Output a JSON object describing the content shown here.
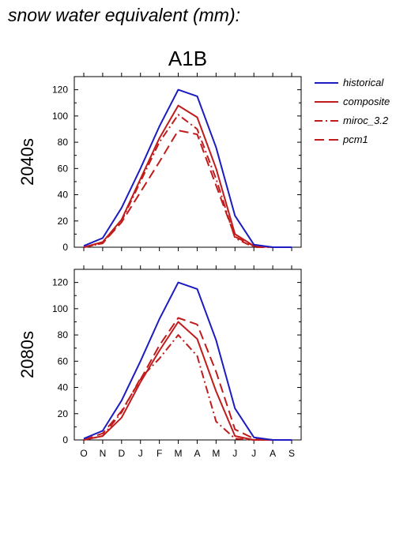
{
  "figure": {
    "title": "snow water equivalent (mm):",
    "scenario": "A1B"
  },
  "legend": [
    {
      "name": "historical",
      "color": "#1c1cc0",
      "dash": "solid"
    },
    {
      "name": "composite",
      "color": "#c01c1c",
      "dash": "solid"
    },
    {
      "name": "miroc_3.2",
      "color": "#c01c1c",
      "dash": "dashdot"
    },
    {
      "name": "pcm1",
      "color": "#c01c1c",
      "dash": "dash"
    }
  ],
  "chart_data": [
    {
      "type": "line",
      "title": "A1B",
      "ylabel": "2040s",
      "xlabel": "",
      "categories": [
        "O",
        "N",
        "D",
        "J",
        "F",
        "M",
        "A",
        "M",
        "J",
        "J",
        "A",
        "S"
      ],
      "ylim": [
        0,
        130
      ],
      "yticks": [
        0,
        20,
        40,
        60,
        80,
        100,
        120
      ],
      "series": [
        {
          "name": "historical",
          "values": [
            1,
            7,
            30,
            60,
            92,
            120,
            115,
            76,
            24,
            2,
            0,
            0
          ]
        },
        {
          "name": "composite",
          "values": [
            0,
            4,
            21,
            52,
            83,
            108,
            99,
            60,
            10,
            1,
            0,
            0
          ]
        },
        {
          "name": "miroc_3.2",
          "values": [
            0,
            3,
            20,
            50,
            80,
            101,
            90,
            52,
            7,
            0,
            0,
            0
          ]
        },
        {
          "name": "pcm1",
          "values": [
            0,
            3,
            19,
            42,
            65,
            89,
            86,
            47,
            8,
            1,
            0,
            0
          ]
        }
      ]
    },
    {
      "type": "line",
      "title": "",
      "ylabel": "2080s",
      "xlabel": "",
      "categories": [
        "O",
        "N",
        "D",
        "J",
        "F",
        "M",
        "A",
        "M",
        "J",
        "J",
        "A",
        "S"
      ],
      "ylim": [
        0,
        130
      ],
      "yticks": [
        0,
        20,
        40,
        60,
        80,
        100,
        120
      ],
      "series": [
        {
          "name": "historical",
          "values": [
            1,
            7,
            30,
            60,
            92,
            120,
            115,
            76,
            24,
            2,
            0,
            0
          ]
        },
        {
          "name": "composite",
          "values": [
            0,
            3,
            17,
            44,
            68,
            90,
            77,
            37,
            3,
            0,
            0,
            0
          ]
        },
        {
          "name": "miroc_3.2",
          "values": [
            0,
            3,
            21,
            47,
            62,
            80,
            64,
            14,
            1,
            0,
            0,
            0
          ]
        },
        {
          "name": "pcm1",
          "values": [
            0,
            5,
            22,
            46,
            72,
            93,
            88,
            52,
            8,
            1,
            0,
            0
          ]
        }
      ]
    }
  ]
}
